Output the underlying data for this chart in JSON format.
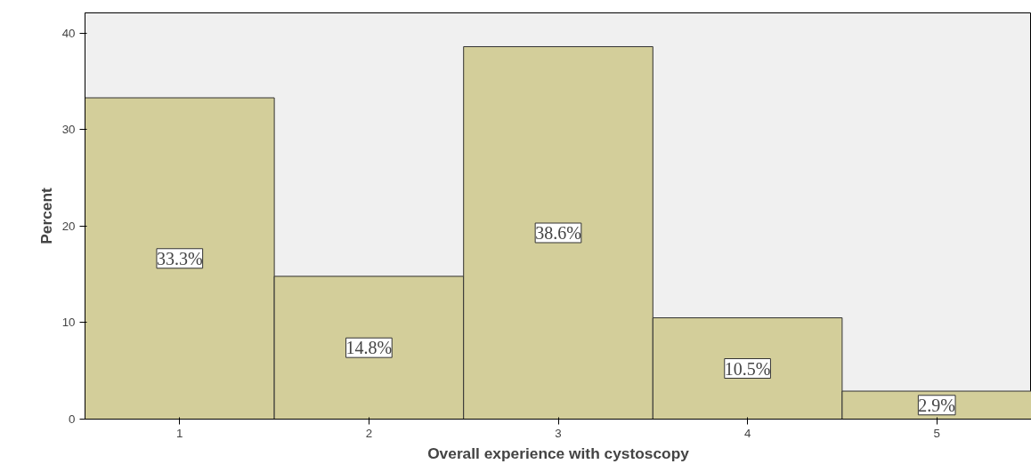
{
  "chart_data": {
    "type": "bar",
    "xlabel": "Overall experience with cystoscopy",
    "ylabel": "Percent",
    "categories": [
      "1",
      "2",
      "3",
      "4",
      "5"
    ],
    "values": [
      33.3,
      14.8,
      38.6,
      10.5,
      2.9
    ],
    "value_labels": [
      "33.3%",
      "14.8%",
      "38.6%",
      "10.5%",
      "2.9%"
    ],
    "color": "#d3ce9a",
    "ylim": [
      0,
      42.1
    ],
    "yticks": [
      0,
      10,
      20,
      30,
      40
    ],
    "grid": false
  }
}
